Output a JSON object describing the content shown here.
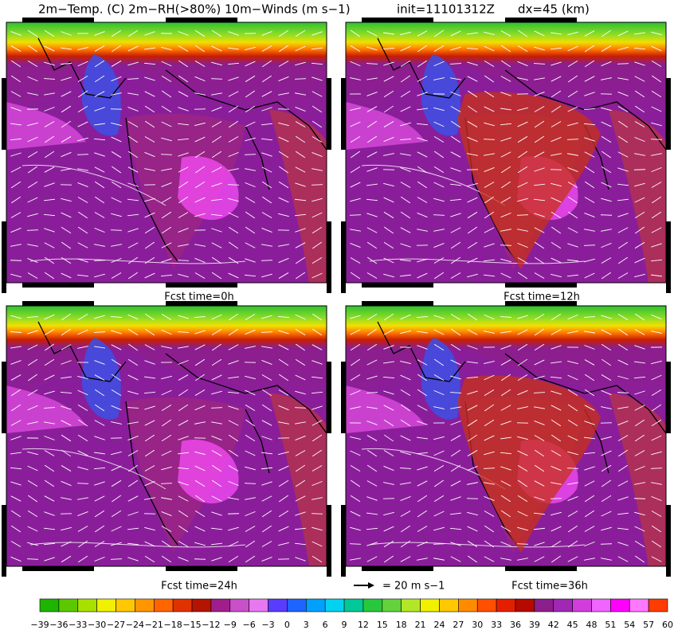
{
  "header": {
    "title": "2m−Temp. (C) 2m−RH(>80%) 10m−Winds (m s−1)",
    "init": "init=11101312Z",
    "resolution": "dx=45 (km)"
  },
  "panels": [
    {
      "label": "Fcst time=0h"
    },
    {
      "label": "Fcst time=12h"
    },
    {
      "label": "Fcst time=24h"
    },
    {
      "label": "Fcst time=36h"
    }
  ],
  "wind_legend": {
    "label": "= 20 m s−1"
  },
  "colorbar": {
    "labels": [
      "−39",
      "−36",
      "−33",
      "−30",
      "−27",
      "−24",
      "−21",
      "−18",
      "−15",
      "−12",
      "−9",
      "−6",
      "−3",
      "0",
      "3",
      "6",
      "9",
      "12",
      "15",
      "18",
      "21",
      "24",
      "27",
      "30",
      "33",
      "36",
      "39",
      "42",
      "45",
      "48",
      "51",
      "54",
      "57",
      "60"
    ],
    "colors": [
      "#1fb400",
      "#5cc800",
      "#a8e000",
      "#f0f000",
      "#ffc800",
      "#ff9600",
      "#ff6400",
      "#e03200",
      "#b41400",
      "#a01e8c",
      "#c850c8",
      "#e678f0",
      "#5a3cff",
      "#1e64ff",
      "#00a0ff",
      "#00d2f0",
      "#00c896",
      "#28c83c",
      "#64d23c",
      "#b4e628",
      "#f0f000",
      "#ffc800",
      "#ff8c00",
      "#ff5000",
      "#e61e00",
      "#b40a00",
      "#8c1e8c",
      "#a028b4",
      "#d23cdc",
      "#f064ff",
      "#ff00ff",
      "#ff78ff",
      "#ff3c00"
    ]
  }
}
